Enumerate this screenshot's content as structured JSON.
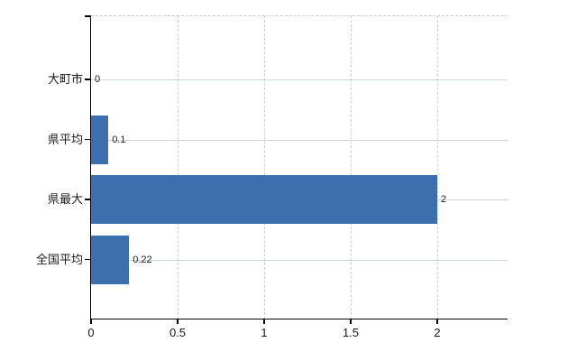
{
  "chart_data": {
    "type": "bar",
    "orientation": "horizontal",
    "title": "",
    "xlabel": "",
    "ylabel": "",
    "categories": [
      "大町市",
      "県平均",
      "県最大",
      "全国平均"
    ],
    "values": [
      0,
      0.1,
      2,
      0.22
    ],
    "value_labels": [
      "0",
      "0.1",
      "2",
      "0.22"
    ],
    "x_tick_values": [
      0,
      0.5,
      1,
      1.5,
      2
    ],
    "x_tick_labels": [
      "0",
      "0.5",
      "1",
      "1.5",
      "2"
    ],
    "xlim": [
      0,
      2.4
    ],
    "grid": true,
    "legend": "none",
    "colors": {
      "bar": "#3d6fae",
      "grid_horizontal": "#ccd6cc",
      "grid_vertical": "#d2d2d6",
      "top_border": "#c9c9c9",
      "axis": "#000000",
      "text": "#1a1a1a",
      "background": "#ffffff"
    }
  }
}
